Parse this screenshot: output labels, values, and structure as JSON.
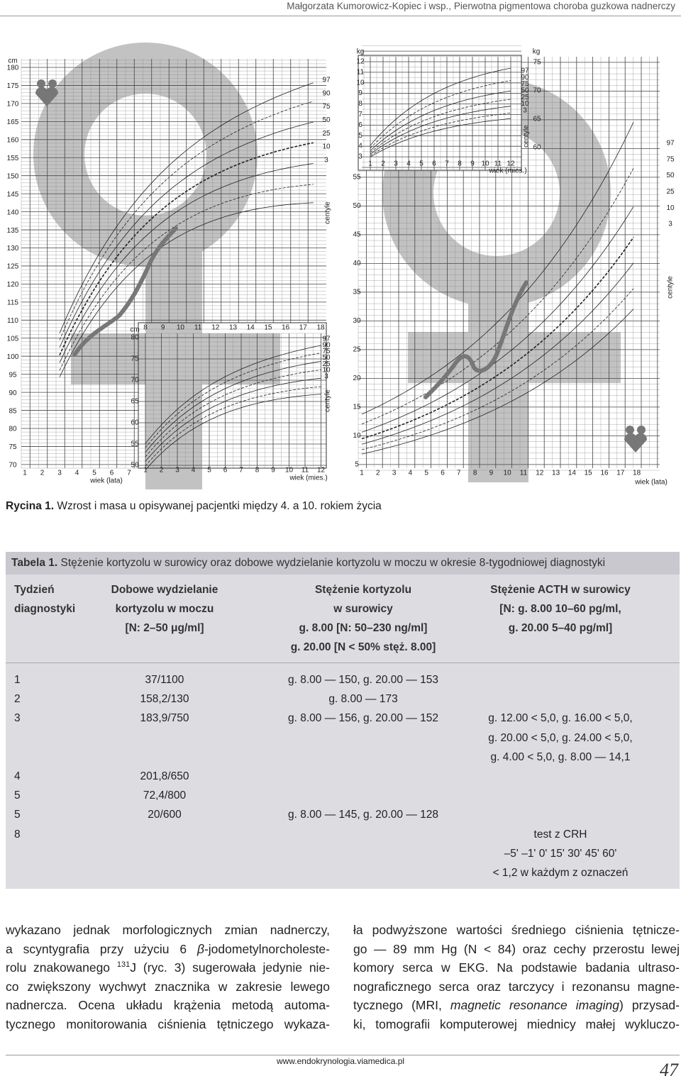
{
  "header": {
    "authors": "Małgorzata Kumorowicz-Kopiec i wsp., ",
    "title": "Pierwotna pigmentowa choroba guzkowa nadnerczy"
  },
  "figure": {
    "left": {
      "y_unit": "cm",
      "y_ticks": [
        "70",
        "75",
        "80",
        "85",
        "90",
        "95",
        "100",
        "105",
        "110",
        "115",
        "120",
        "125",
        "130",
        "135",
        "140",
        "145",
        "150",
        "155",
        "160",
        "165",
        "170",
        "175",
        "180"
      ],
      "x_ticks": [
        "1",
        "2",
        "3",
        "4",
        "5",
        "6",
        "7"
      ],
      "x_label": "wiek (lata)",
      "centiles": [
        "97",
        "90",
        "75",
        "50",
        "25",
        "10",
        "3"
      ],
      "centile_label": "centyle",
      "inset": {
        "y_unit": "cm",
        "y_ticks": [
          "50",
          "55",
          "60",
          "65",
          "70",
          "75",
          "80"
        ],
        "top_ticks": [
          "8",
          "9",
          "10",
          "11",
          "12",
          "13",
          "14",
          "15",
          "16",
          "17",
          "18"
        ],
        "x_ticks": [
          "1",
          "2",
          "3",
          "4",
          "5",
          "6",
          "7",
          "8",
          "9",
          "10",
          "11",
          "12"
        ],
        "x_label": "wiek (mies.)",
        "centiles": [
          "97",
          "90",
          "75",
          "50",
          "25",
          "10",
          "3"
        ],
        "centile_label": "centyle"
      }
    },
    "right": {
      "y_ticks": [
        "5",
        "10",
        "15",
        "20",
        "25",
        "30",
        "35",
        "40",
        "45",
        "50",
        "55"
      ],
      "x_ticks": [
        "1",
        "2",
        "3",
        "4",
        "5",
        "6",
        "7",
        "8",
        "9",
        "10",
        "11",
        "12",
        "13",
        "14",
        "15",
        "16",
        "17",
        "18"
      ],
      "x_label": "wiek (lata)",
      "centiles": [
        "97",
        "75",
        "50",
        "25",
        "10",
        "3"
      ],
      "centile_label": "centyle",
      "inset": {
        "y_unit": "kg",
        "y_ticks": [
          "3",
          "4",
          "5",
          "6",
          "7",
          "8",
          "9",
          "10",
          "11",
          "12"
        ],
        "x_ticks": [
          "1",
          "2",
          "3",
          "4",
          "5",
          "6",
          "7",
          "8",
          "9",
          "10",
          "11",
          "12"
        ],
        "x_label": "wiek (mies.)",
        "right_unit": "kg",
        "right_ticks": [
          "75",
          "70",
          "65",
          "60"
        ],
        "centiles": [
          "97",
          "90",
          "75",
          "50",
          "25",
          "10",
          "3"
        ],
        "centile_label": "centyle"
      }
    }
  },
  "caption": {
    "label": "Rycina 1.",
    "text": " Wzrost i masa u opisywanej pacjentki między 4. a 10. rokiem życia"
  },
  "table": {
    "label": "Tabela 1.",
    "title": " Stężenie kortyzolu w surowicy oraz dobowe wydzielanie kortyzolu w moczu w okresie 8-tygodniowej diagnostyki",
    "headers": [
      [
        "Tydzień",
        "diagnostyki"
      ],
      [
        "Dobowe wydzielanie",
        "kortyzolu w moczu",
        "[N: 2–50 μg/ml]"
      ],
      [
        "Stężenie kortyzolu",
        "w surowicy",
        "g. 8.00 [N: 50–230 ng/ml]",
        "g. 20.00 [N < 50% stęż. 8.00]"
      ],
      [
        "Stężenie ACTH w surowicy",
        "[N: g. 8.00 10–60 pg/ml,",
        "g. 20.00 5–40 pg/ml]"
      ]
    ],
    "rows": [
      [
        [
          "1"
        ],
        [
          "37/1100"
        ],
        [
          "g. 8.00 — 150, g. 20.00 — 153"
        ],
        []
      ],
      [
        [
          "2"
        ],
        [
          "158,2/130"
        ],
        [
          "g. 8.00 — 173"
        ],
        []
      ],
      [
        [
          "3"
        ],
        [
          "183,9/750"
        ],
        [
          "g. 8.00 — 156, g. 20.00 — 152"
        ],
        [
          "g. 12.00 < 5,0, g. 16.00 < 5,0,",
          "g. 20.00 < 5,0, g. 24.00 < 5,0,",
          "g. 4.00 < 5,0, g. 8.00 — 14,1"
        ]
      ],
      [
        [
          "4"
        ],
        [
          "201,8/650"
        ],
        [],
        []
      ],
      [
        [
          "5"
        ],
        [
          "72,4/800"
        ],
        [],
        []
      ],
      [
        [
          "5"
        ],
        [
          "20/600"
        ],
        [
          "g. 8.00 — 145, g. 20.00 — 128"
        ],
        []
      ],
      [
        [
          "8"
        ],
        [],
        [],
        [
          "test z CRH",
          "–5' –1' 0' 15' 30' 45' 60'",
          "< 1,2 w każdym z oznaczeń"
        ]
      ]
    ]
  },
  "body": {
    "left": [
      [
        {
          "t": "wykazano jednak morfologicznych zmian nadnerczy,"
        }
      ],
      [
        {
          "t": "a scyntygrafia przy użyciu 6 "
        },
        {
          "t": "β",
          "style": "italic"
        },
        {
          "t": "-jodometylnorcholeste-"
        }
      ],
      [
        {
          "t": "rolu znakowanego "
        },
        {
          "t": "131",
          "style": "sup"
        },
        {
          "t": "J (ryc. 3) sugerowała jedynie nie-"
        }
      ],
      [
        {
          "t": "co zwiększony wychwyt znacznika w zakresie lewego"
        }
      ],
      [
        {
          "t": "nadnercza. Ocena układu krążenia metodą automa-"
        }
      ],
      [
        {
          "t": "tycznego monitorowania ciśnienia tętniczego wykaza-"
        }
      ]
    ],
    "right": [
      [
        {
          "t": "ła podwyższone wartości średniego ciśnienia tętnicze-"
        }
      ],
      [
        {
          "t": "go — 89 mm Hg (N < 84) oraz cechy przerostu lewej"
        }
      ],
      [
        {
          "t": "komory serca w EKG. Na podstawie badania ultraso-"
        }
      ],
      [
        {
          "t": "nograficznego serca oraz tarczycy i rezonansu magne-"
        }
      ],
      [
        {
          "t": "tycznego (MRI, "
        },
        {
          "t": "magnetic resonance imaging",
          "style": "italic"
        },
        {
          "t": ") przysad-"
        }
      ],
      [
        {
          "t": "ki, tomografii komputerowej miednicy małej wykluczo-"
        }
      ]
    ]
  },
  "footer": {
    "url": "www.endokrynologia.viamedica.pl",
    "page": "47"
  }
}
